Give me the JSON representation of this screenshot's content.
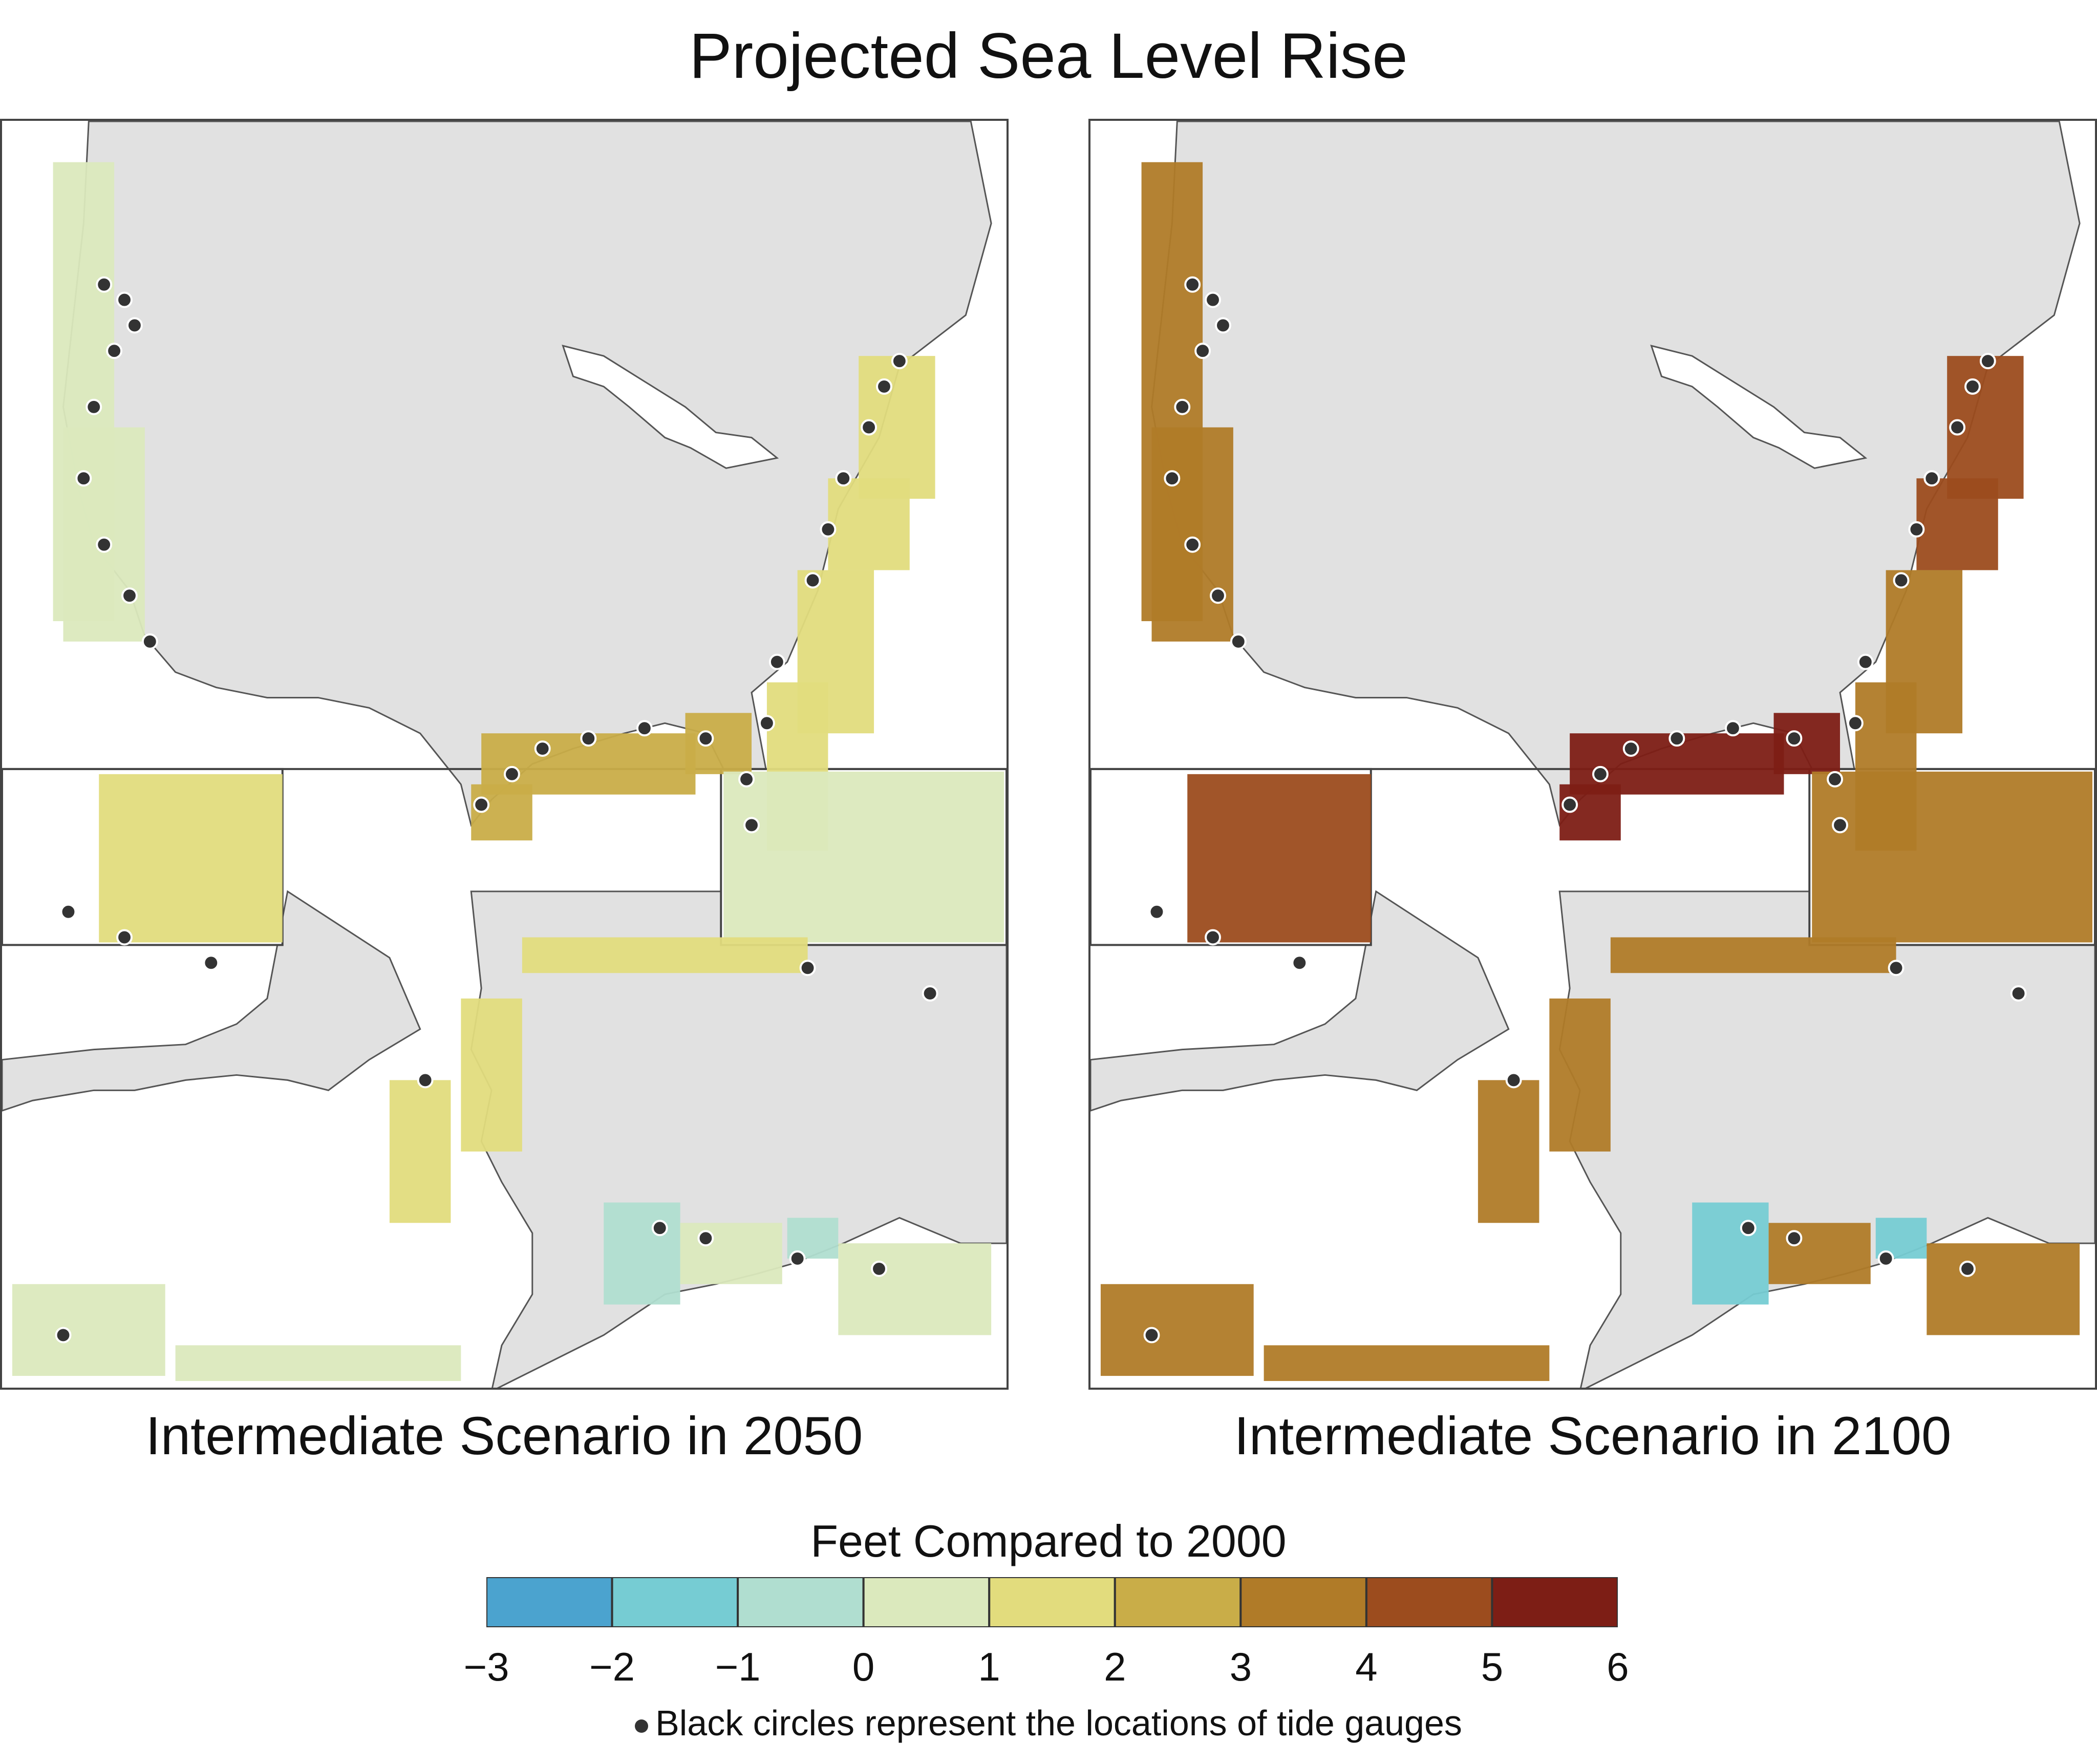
{
  "title": "Projected Sea Level Rise",
  "panels": [
    {
      "id": "2050",
      "caption": "Intermediate Scenario in 2050"
    },
    {
      "id": "2100",
      "caption": "Intermediate Scenario in 2100"
    }
  ],
  "legend": {
    "title": "Feet Compared to 2000",
    "ticks": [
      "−3",
      "−2",
      "−1",
      "0",
      "1",
      "2",
      "3",
      "4",
      "5",
      "6"
    ],
    "bins": [
      {
        "range": [
          -3,
          -2
        ],
        "color": "#4ba3cf"
      },
      {
        "range": [
          -2,
          -1
        ],
        "color": "#76ccd3"
      },
      {
        "range": [
          -1,
          0
        ],
        "color": "#b0ded0"
      },
      {
        "range": [
          0,
          1
        ],
        "color": "#dbe9bd"
      },
      {
        "range": [
          1,
          2
        ],
        "color": "#e2dc7d"
      },
      {
        "range": [
          2,
          3
        ],
        "color": "#c9ad48"
      },
      {
        "range": [
          3,
          4
        ],
        "color": "#b07b28"
      },
      {
        "range": [
          4,
          5
        ],
        "color": "#9c4c1e"
      },
      {
        "range": [
          5,
          6
        ],
        "color": "#7d1e15"
      }
    ],
    "note": "Black circles represent the locations of tide gauges"
  },
  "colors": {
    "land": "#e1e1e1",
    "border": "#555555",
    "water": "#ffffff",
    "gauge": "#333333"
  },
  "regions": {
    "2050": {
      "pacific": 0.7,
      "atlantic_northeast": 1.4,
      "atlantic_southeast": 1.4,
      "gulf": 2.3,
      "hawaii": 1.3,
      "puerto_rico": 0.8,
      "alaska_north": 1.3,
      "alaska_southeast": -0.5,
      "aleutians": 0.6
    },
    "2100": {
      "pacific": 3.5,
      "atlantic_northeast": 4.3,
      "atlantic_southeast": 3.6,
      "gulf": 5.5,
      "hawaii": 4.2,
      "puerto_rico": 3.5,
      "alaska_north": 3.3,
      "alaska_southeast": -1.5,
      "aleutians": 3.2
    }
  }
}
